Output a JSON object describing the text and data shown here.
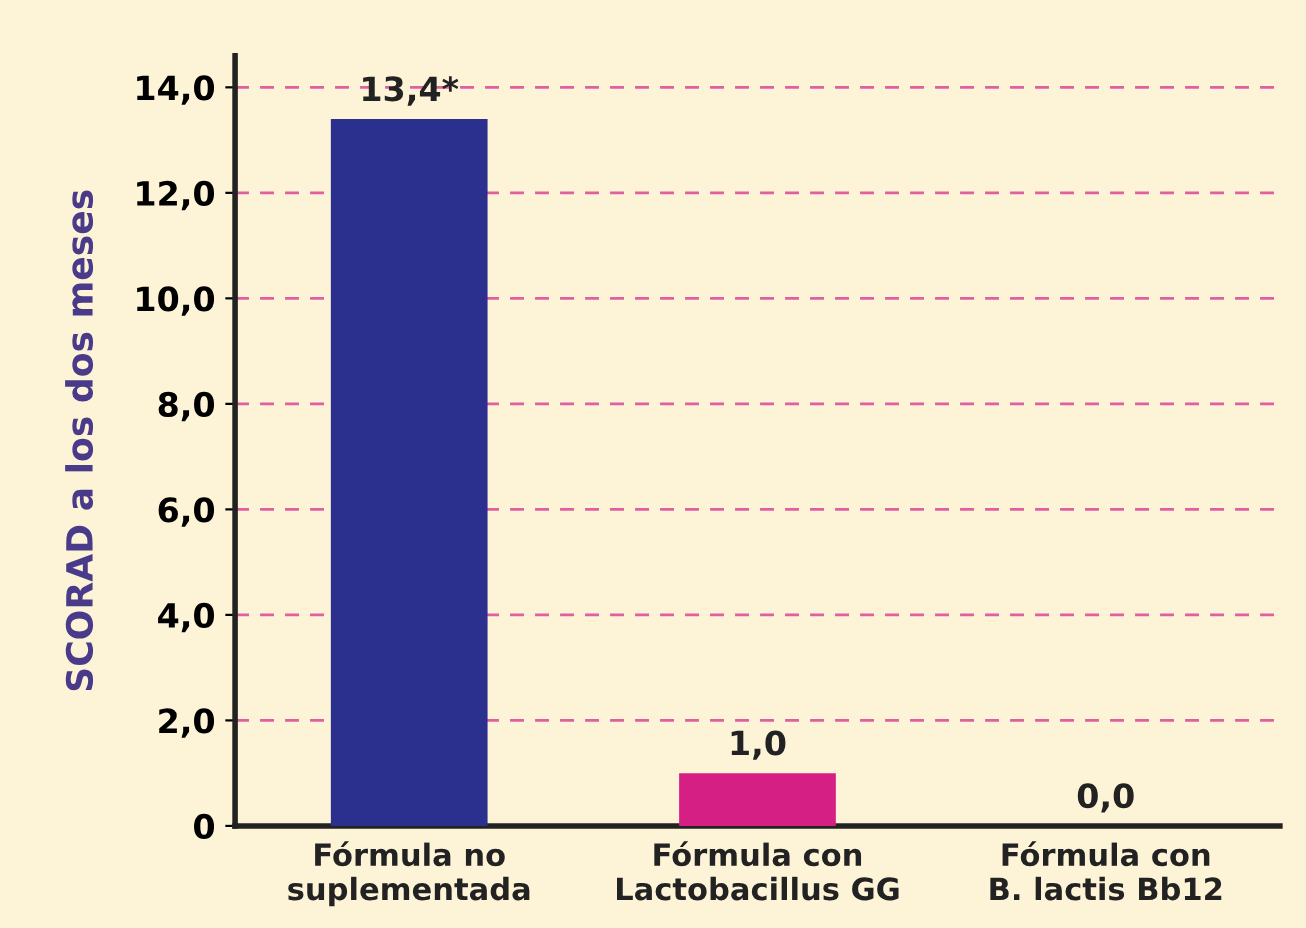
{
  "chart_data": {
    "type": "bar",
    "ylabel": "SCORAD a los dos meses",
    "categories": [
      "Fórmula no\nsuplementada",
      "Fórmula con\nLactobacillus GG",
      "Fórmula con\nB. lactis Bb12"
    ],
    "values": [
      13.4,
      1.0,
      0.0
    ],
    "colors": [
      "#2b2f8e",
      "#d61f85",
      "#d61f85"
    ],
    "value_labels": [
      "13,4*",
      "1,0",
      "0,0"
    ],
    "ylim": [
      0,
      14.6
    ],
    "yticks": [
      0,
      {
        "value": 2,
        "label": "2,0"
      },
      {
        "value": 4,
        "label": "4,0"
      },
      {
        "value": 6,
        "label": "6,0"
      },
      {
        "value": 8,
        "label": "8,0"
      },
      {
        "value": 10,
        "label": "10,0"
      },
      {
        "value": 12,
        "label": "12,0"
      },
      {
        "value": 14,
        "label": "14,0"
      }
    ],
    "grid": "y"
  }
}
